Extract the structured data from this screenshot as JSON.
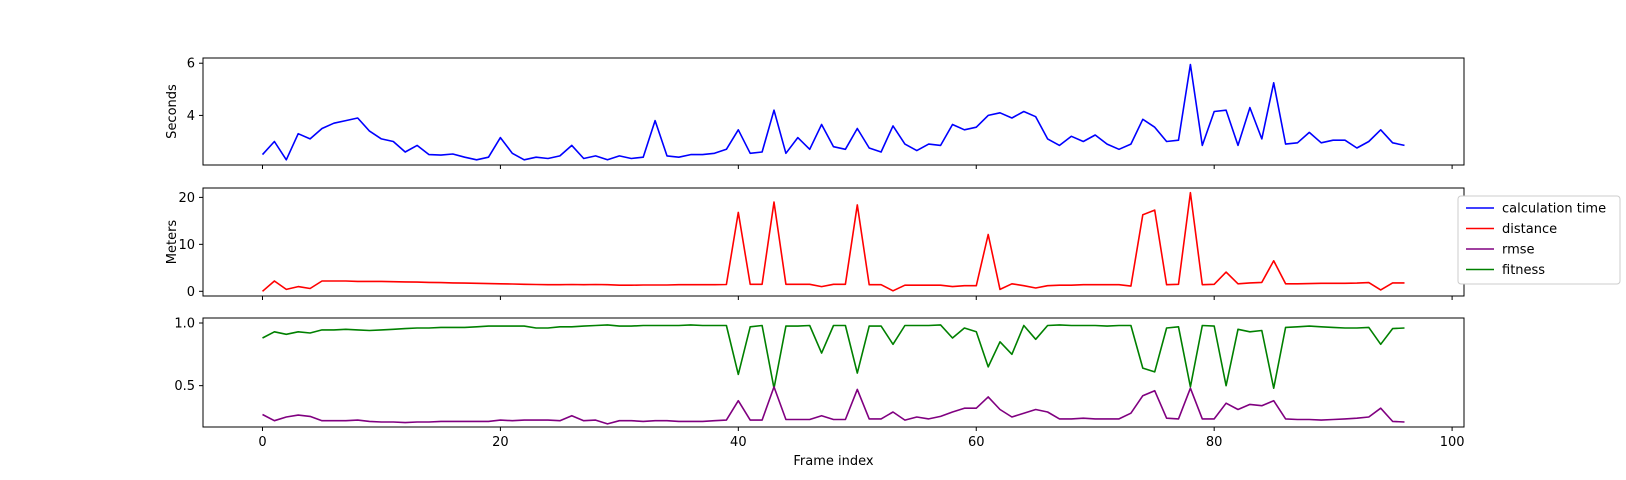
{
  "chart_data": [
    {
      "type": "line",
      "xlabel": "",
      "ylabel": "Seconds",
      "xlim": [
        -5,
        101
      ],
      "ylim": [
        2.1,
        6.2
      ],
      "yticks": [
        4,
        6
      ],
      "xticks": [
        0,
        20,
        40,
        60,
        80,
        100
      ],
      "show_x_tick_labels": false,
      "series": [
        {
          "name": "calculation time",
          "color": "#0000ff",
          "x": [
            0,
            1,
            2,
            3,
            4,
            5,
            6,
            7,
            8,
            9,
            10,
            11,
            12,
            13,
            14,
            15,
            16,
            17,
            18,
            19,
            20,
            21,
            22,
            23,
            24,
            25,
            26,
            27,
            28,
            29,
            30,
            31,
            32,
            33,
            34,
            35,
            36,
            37,
            38,
            39,
            40,
            41,
            42,
            43,
            44,
            45,
            46,
            47,
            48,
            49,
            50,
            51,
            52,
            53,
            54,
            55,
            56,
            57,
            58,
            59,
            60,
            61,
            62,
            63,
            64,
            65,
            66,
            67,
            68,
            69,
            70,
            71,
            72,
            73,
            74,
            75,
            76,
            77,
            78,
            79,
            80,
            81,
            82,
            83,
            84,
            85,
            86,
            87,
            88,
            89,
            90,
            91,
            92,
            93,
            94,
            95,
            96
          ],
          "values": [
            2.5,
            3.0,
            2.3,
            3.3,
            3.1,
            3.5,
            3.7,
            3.8,
            3.9,
            3.4,
            3.1,
            3.0,
            2.6,
            2.85,
            2.5,
            2.48,
            2.52,
            2.4,
            2.3,
            2.4,
            3.15,
            2.55,
            2.3,
            2.4,
            2.35,
            2.45,
            2.85,
            2.35,
            2.45,
            2.3,
            2.45,
            2.35,
            2.4,
            3.8,
            2.45,
            2.4,
            2.5,
            2.5,
            2.55,
            2.7,
            3.45,
            2.55,
            2.6,
            4.2,
            2.55,
            3.15,
            2.7,
            3.65,
            2.8,
            2.7,
            3.5,
            2.75,
            2.6,
            3.6,
            2.9,
            2.65,
            2.9,
            2.85,
            3.65,
            3.45,
            3.55,
            4.0,
            4.1,
            3.9,
            4.15,
            3.95,
            3.1,
            2.85,
            3.2,
            3.0,
            3.25,
            2.9,
            2.7,
            2.9,
            3.85,
            3.55,
            3.0,
            3.05,
            5.95,
            2.85,
            4.15,
            4.2,
            2.85,
            4.3,
            3.1,
            5.25,
            2.9,
            2.95,
            3.35,
            2.95,
            3.05,
            3.05,
            2.75,
            3.0,
            3.45,
            2.95,
            2.85
          ]
        }
      ]
    },
    {
      "type": "line",
      "xlabel": "",
      "ylabel": "Meters",
      "xlim": [
        -5,
        101
      ],
      "ylim": [
        -1.0,
        22.0
      ],
      "yticks": [
        0,
        10,
        20
      ],
      "xticks": [
        0,
        20,
        40,
        60,
        80,
        100
      ],
      "show_x_tick_labels": false,
      "series": [
        {
          "name": "distance",
          "color": "#ff0000",
          "x": [
            0,
            1,
            2,
            3,
            4,
            5,
            6,
            7,
            8,
            9,
            10,
            11,
            12,
            13,
            14,
            15,
            16,
            17,
            18,
            19,
            20,
            21,
            22,
            23,
            24,
            25,
            26,
            27,
            28,
            29,
            30,
            31,
            32,
            33,
            34,
            35,
            36,
            37,
            38,
            39,
            40,
            41,
            42,
            43,
            44,
            45,
            46,
            47,
            48,
            49,
            50,
            51,
            52,
            53,
            54,
            55,
            56,
            57,
            58,
            59,
            60,
            61,
            62,
            63,
            64,
            65,
            66,
            67,
            68,
            69,
            70,
            71,
            72,
            73,
            74,
            75,
            76,
            77,
            78,
            79,
            80,
            81,
            82,
            83,
            84,
            85,
            86,
            87,
            88,
            89,
            90,
            91,
            92,
            93,
            94,
            95,
            96
          ],
          "values": [
            0.0,
            2.2,
            0.4,
            1.0,
            0.6,
            2.2,
            2.2,
            2.2,
            2.1,
            2.1,
            2.1,
            2.05,
            2.0,
            1.95,
            1.9,
            1.85,
            1.8,
            1.75,
            1.7,
            1.65,
            1.6,
            1.55,
            1.5,
            1.45,
            1.4,
            1.4,
            1.45,
            1.4,
            1.45,
            1.4,
            1.3,
            1.3,
            1.35,
            1.35,
            1.35,
            1.4,
            1.4,
            1.4,
            1.4,
            1.45,
            16.8,
            1.5,
            1.5,
            19.0,
            1.5,
            1.5,
            1.5,
            1.0,
            1.5,
            1.5,
            18.4,
            1.4,
            1.4,
            0.1,
            1.3,
            1.3,
            1.3,
            1.3,
            1.0,
            1.2,
            1.2,
            12.1,
            0.4,
            1.6,
            1.2,
            0.7,
            1.2,
            1.3,
            1.3,
            1.4,
            1.4,
            1.4,
            1.4,
            1.1,
            16.3,
            17.3,
            1.4,
            1.5,
            21.0,
            1.4,
            1.5,
            4.1,
            1.6,
            1.8,
            1.9,
            6.5,
            1.6,
            1.6,
            1.65,
            1.7,
            1.7,
            1.7,
            1.75,
            1.85,
            0.3,
            1.8,
            1.8
          ]
        }
      ]
    },
    {
      "type": "line",
      "xlabel": "Frame index",
      "ylabel": "",
      "xlim": [
        -5,
        101
      ],
      "ylim": [
        0.17,
        1.04
      ],
      "yticks": [
        0.5,
        1.0
      ],
      "ytick_labels": [
        "0.5",
        "1.0"
      ],
      "xticks": [
        0,
        20,
        40,
        60,
        80,
        100
      ],
      "show_x_tick_labels": true,
      "series": [
        {
          "name": "fitness",
          "color": "#008000",
          "x": [
            0,
            1,
            2,
            3,
            4,
            5,
            6,
            7,
            8,
            9,
            10,
            11,
            12,
            13,
            14,
            15,
            16,
            17,
            18,
            19,
            20,
            21,
            22,
            23,
            24,
            25,
            26,
            27,
            28,
            29,
            30,
            31,
            32,
            33,
            34,
            35,
            36,
            37,
            38,
            39,
            40,
            41,
            42,
            43,
            44,
            45,
            46,
            47,
            48,
            49,
            50,
            51,
            52,
            53,
            54,
            55,
            56,
            57,
            58,
            59,
            60,
            61,
            62,
            63,
            64,
            65,
            66,
            67,
            68,
            69,
            70,
            71,
            72,
            73,
            74,
            75,
            76,
            77,
            78,
            79,
            80,
            81,
            82,
            83,
            84,
            85,
            86,
            87,
            88,
            89,
            90,
            91,
            92,
            93,
            94,
            95,
            96
          ],
          "values": [
            0.88,
            0.93,
            0.91,
            0.93,
            0.92,
            0.945,
            0.945,
            0.95,
            0.945,
            0.94,
            0.945,
            0.95,
            0.955,
            0.96,
            0.96,
            0.965,
            0.965,
            0.965,
            0.97,
            0.975,
            0.975,
            0.975,
            0.975,
            0.96,
            0.96,
            0.97,
            0.97,
            0.975,
            0.98,
            0.985,
            0.975,
            0.975,
            0.98,
            0.98,
            0.98,
            0.98,
            0.985,
            0.98,
            0.98,
            0.98,
            0.59,
            0.97,
            0.98,
            0.48,
            0.975,
            0.975,
            0.98,
            0.76,
            0.98,
            0.98,
            0.6,
            0.975,
            0.975,
            0.83,
            0.98,
            0.98,
            0.98,
            0.985,
            0.88,
            0.96,
            0.93,
            0.65,
            0.85,
            0.75,
            0.98,
            0.87,
            0.98,
            0.985,
            0.98,
            0.98,
            0.98,
            0.975,
            0.98,
            0.98,
            0.64,
            0.61,
            0.96,
            0.97,
            0.49,
            0.98,
            0.975,
            0.5,
            0.95,
            0.93,
            0.94,
            0.48,
            0.965,
            0.97,
            0.975,
            0.97,
            0.965,
            0.96,
            0.96,
            0.965,
            0.83,
            0.955,
            0.96
          ]
        },
        {
          "name": "rmse",
          "color": "#800080",
          "x": [
            0,
            1,
            2,
            3,
            4,
            5,
            6,
            7,
            8,
            9,
            10,
            11,
            12,
            13,
            14,
            15,
            16,
            17,
            18,
            19,
            20,
            21,
            22,
            23,
            24,
            25,
            26,
            27,
            28,
            29,
            30,
            31,
            32,
            33,
            34,
            35,
            36,
            37,
            38,
            39,
            40,
            41,
            42,
            43,
            44,
            45,
            46,
            47,
            48,
            49,
            50,
            51,
            52,
            53,
            54,
            55,
            56,
            57,
            58,
            59,
            60,
            61,
            62,
            63,
            64,
            65,
            66,
            67,
            68,
            69,
            70,
            71,
            72,
            73,
            74,
            75,
            76,
            77,
            78,
            79,
            80,
            81,
            82,
            83,
            84,
            85,
            86,
            87,
            88,
            89,
            90,
            91,
            92,
            93,
            94,
            95,
            96
          ],
          "values": [
            0.27,
            0.22,
            0.25,
            0.265,
            0.255,
            0.22,
            0.22,
            0.22,
            0.225,
            0.215,
            0.21,
            0.21,
            0.205,
            0.21,
            0.21,
            0.215,
            0.215,
            0.215,
            0.215,
            0.215,
            0.225,
            0.22,
            0.225,
            0.225,
            0.225,
            0.22,
            0.26,
            0.22,
            0.225,
            0.195,
            0.22,
            0.22,
            0.215,
            0.22,
            0.22,
            0.215,
            0.215,
            0.215,
            0.22,
            0.225,
            0.38,
            0.225,
            0.225,
            0.49,
            0.23,
            0.23,
            0.23,
            0.26,
            0.23,
            0.23,
            0.47,
            0.235,
            0.235,
            0.29,
            0.225,
            0.25,
            0.235,
            0.255,
            0.29,
            0.32,
            0.32,
            0.41,
            0.31,
            0.25,
            0.28,
            0.31,
            0.29,
            0.235,
            0.235,
            0.24,
            0.235,
            0.235,
            0.235,
            0.28,
            0.42,
            0.46,
            0.24,
            0.235,
            0.48,
            0.235,
            0.235,
            0.36,
            0.31,
            0.35,
            0.34,
            0.38,
            0.235,
            0.23,
            0.23,
            0.225,
            0.23,
            0.235,
            0.24,
            0.25,
            0.32,
            0.215,
            0.21
          ]
        }
      ]
    }
  ],
  "legend": {
    "placement": "right",
    "entries": [
      {
        "label": "calculation time",
        "color": "#0000ff"
      },
      {
        "label": "distance",
        "color": "#ff0000"
      },
      {
        "label": "rmse",
        "color": "#800080"
      },
      {
        "label": "fitness",
        "color": "#008000"
      }
    ]
  }
}
